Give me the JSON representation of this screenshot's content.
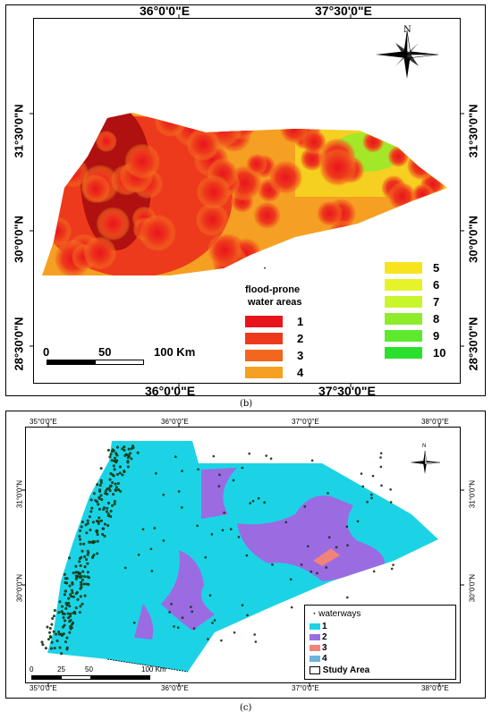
{
  "panel_b": {
    "top_labels": [
      "36°0'0\"E",
      "37°30'0\"E"
    ],
    "bottom_labels": [
      "36°0'0\"E",
      "37°30'0\"E"
    ],
    "left_labels": [
      "31°30'0\"N",
      "30°0'0\"N",
      "28°30'0\"N"
    ],
    "right_labels": [
      "31°30'0\"N",
      "30°0'0\"N",
      "28°30'0\"N"
    ],
    "north_label": "N",
    "scale": {
      "ticks": [
        "0",
        "50",
        "100 Km"
      ]
    },
    "legend": {
      "title_line1": "flood-prone",
      "title_line2": "water areas",
      "items_left": [
        {
          "label": "1",
          "color": "#e8141c"
        },
        {
          "label": "2",
          "color": "#ee3a1c"
        },
        {
          "label": "3",
          "color": "#f2661e"
        },
        {
          "label": "4",
          "color": "#f5a023"
        }
      ],
      "items_right": [
        {
          "label": "5",
          "color": "#f7e41f"
        },
        {
          "label": "6",
          "color": "#e6f32b"
        },
        {
          "label": "7",
          "color": "#c9f52d"
        },
        {
          "label": "8",
          "color": "#8fec2c"
        },
        {
          "label": "9",
          "color": "#5de92e"
        },
        {
          "label": "10",
          "color": "#2be02d"
        }
      ]
    },
    "caption": "(b)"
  },
  "panel_c": {
    "top_labels": [
      "35°0'0\"E",
      "36°0'0\"E",
      "37°0'0\"E",
      "38°0'0\"E"
    ],
    "bottom_labels": [
      "35°0'0\"E",
      "36°0'0\"E",
      "37°0'0\"E",
      "38°0'0\"E"
    ],
    "left_labels": [
      "31°0'0\"N",
      "30°0'0\"N"
    ],
    "right_labels": [
      "31°0'0\"N",
      "30°0'0\"N"
    ],
    "north_label": "N",
    "scale": {
      "ticks": [
        "0",
        "25",
        "50",
        "100 Km"
      ]
    },
    "legend": {
      "waterways_label": "waterways",
      "items": [
        {
          "label": "1",
          "color": "#1cd3e6"
        },
        {
          "label": "2",
          "color": "#9b6be2"
        },
        {
          "label": "3",
          "color": "#f0847a"
        },
        {
          "label": "4",
          "color": "#6fb3d8"
        }
      ],
      "study_area_label": "Study Area"
    },
    "caption": "(c)"
  }
}
